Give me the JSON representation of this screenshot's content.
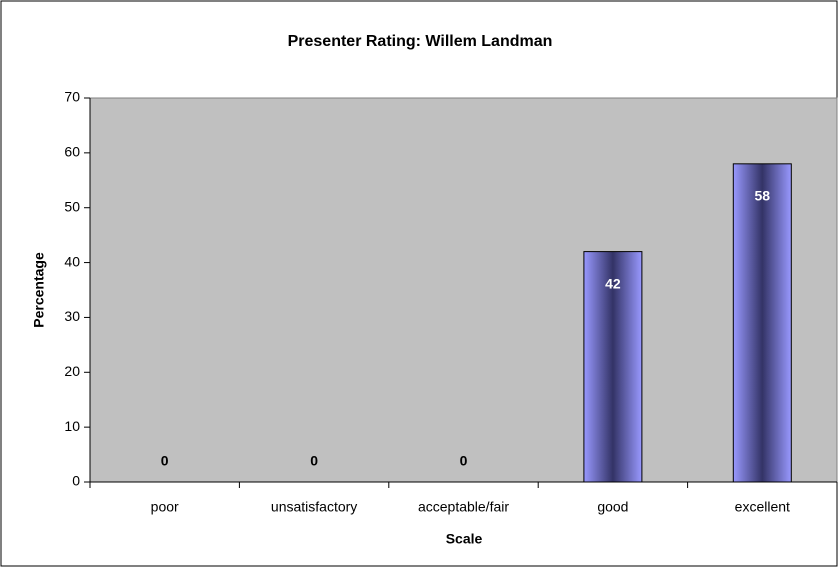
{
  "chart_data": {
    "type": "bar",
    "title": "Presenter Rating: Willem Landman",
    "x_label": "Scale",
    "y_label": "Percentage",
    "categories": [
      "poor",
      "unsatisfactory",
      "acceptable/fair",
      "good",
      "excellent"
    ],
    "values": [
      0,
      0,
      0,
      42,
      58
    ],
    "color": "#9999ff",
    "ylim": [
      0,
      70
    ],
    "yticks": [
      0,
      10,
      20,
      30,
      40,
      50,
      60,
      70
    ],
    "grid": false
  }
}
